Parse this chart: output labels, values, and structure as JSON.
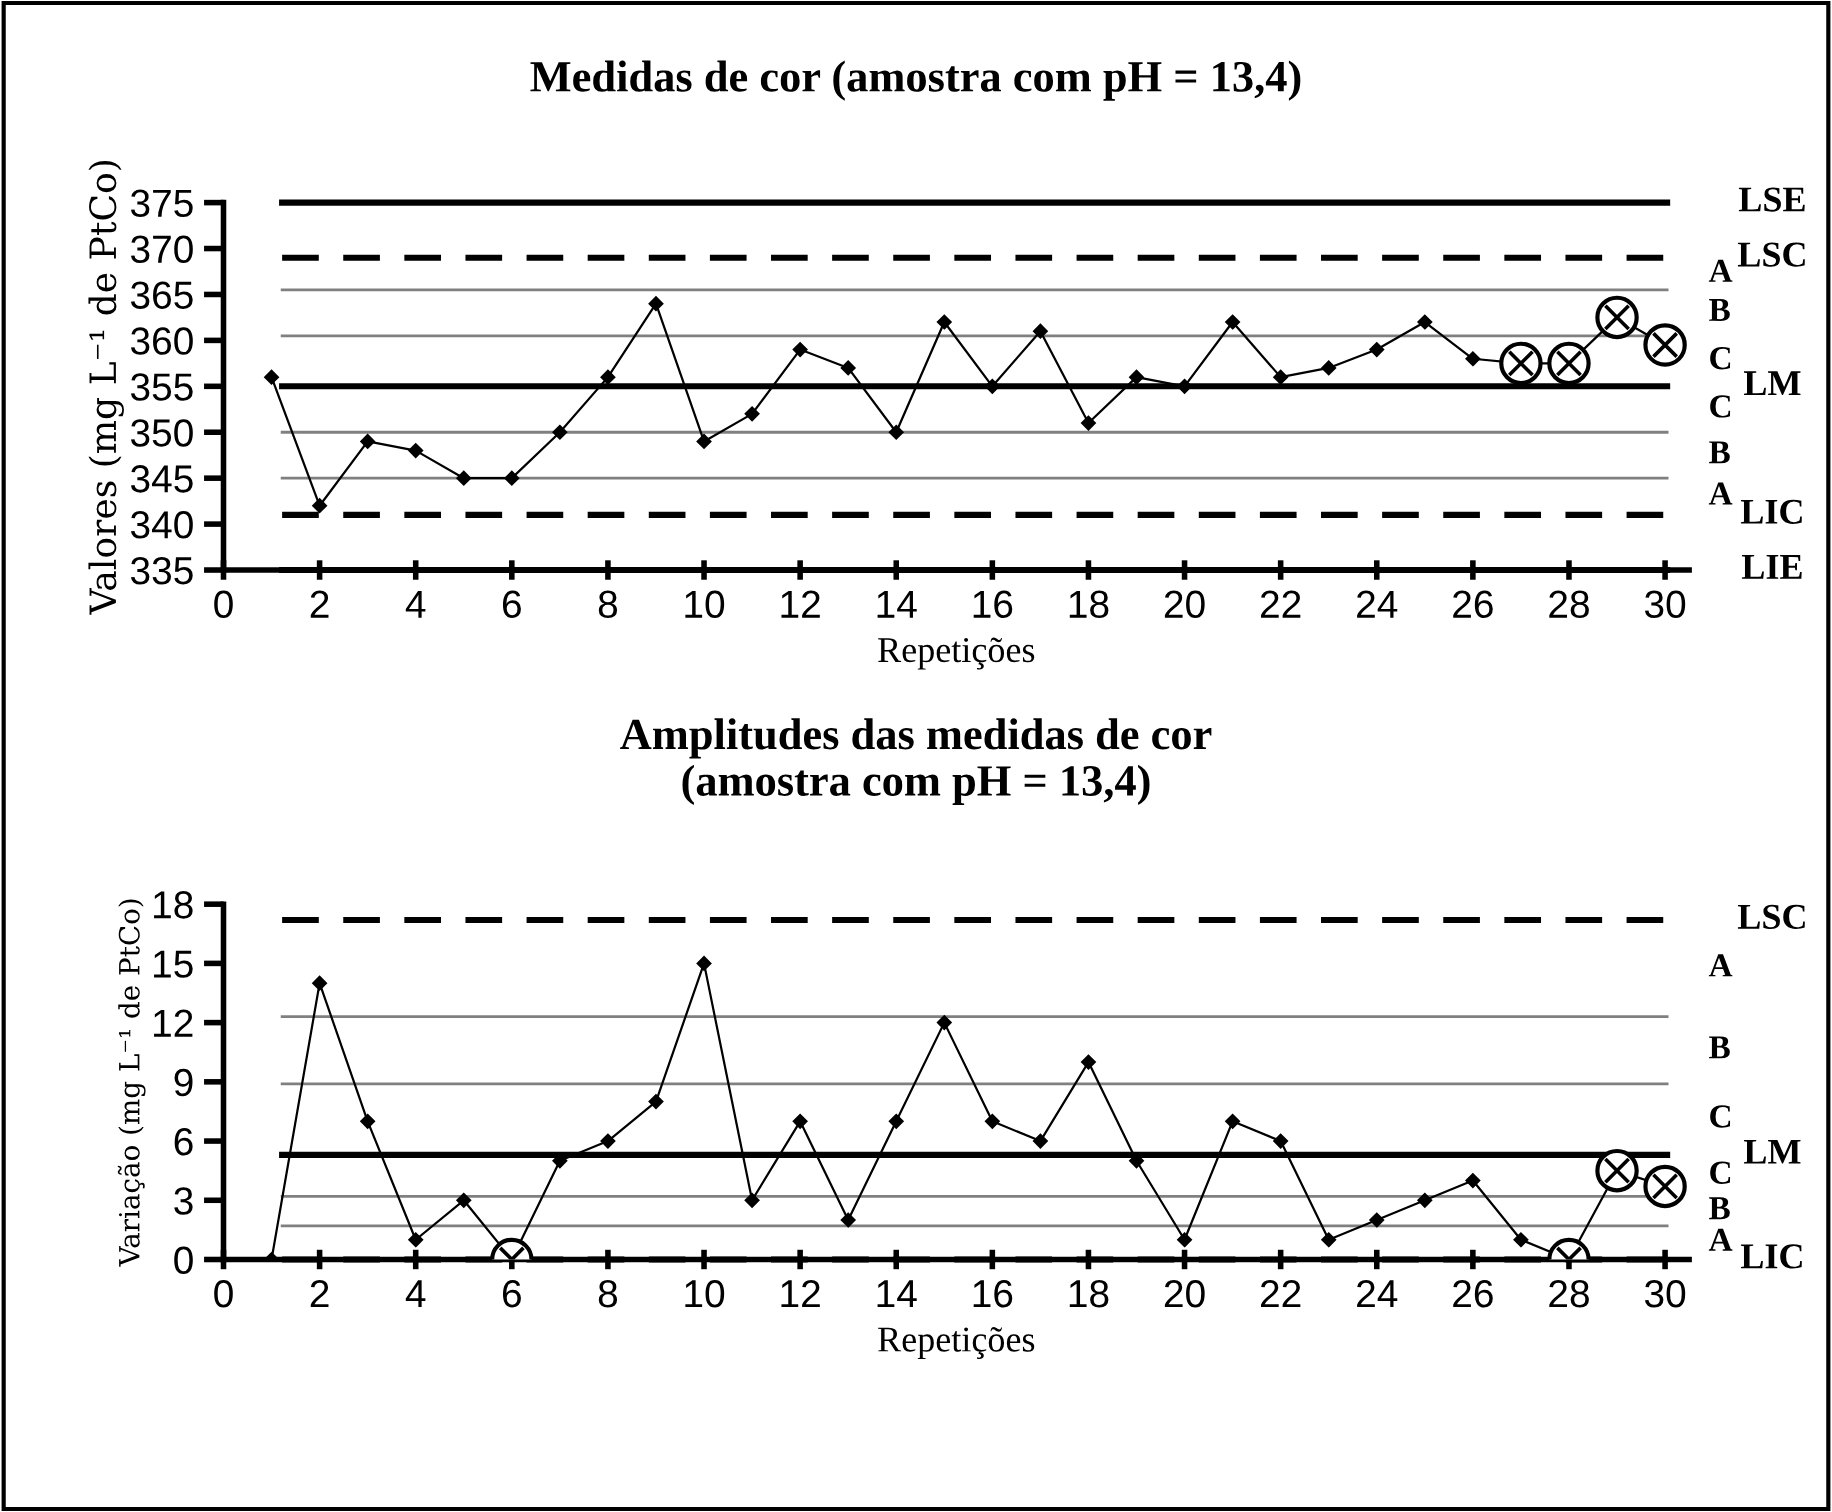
{
  "chart_data": [
    {
      "type": "line",
      "title": "Medidas de cor (amostra com pH = 13,4)",
      "xlabel": "Repetições",
      "ylabel": "Valores (mg L⁻¹ de PtCo)",
      "x": [
        1,
        2,
        3,
        4,
        5,
        6,
        7,
        8,
        9,
        10,
        11,
        12,
        13,
        14,
        15,
        16,
        17,
        18,
        19,
        20,
        21,
        22,
        23,
        24,
        25,
        26,
        27,
        28,
        29,
        30
      ],
      "series": [
        {
          "color": "#000000",
          "marker": "diamond",
          "values": [
            356,
            342,
            349,
            348,
            345,
            345,
            350,
            356,
            364,
            349,
            352,
            359,
            357,
            350,
            362,
            355,
            361,
            351,
            356,
            355,
            362,
            356,
            357,
            359,
            362,
            358,
            357.5,
            357.5,
            362.5,
            359.5
          ]
        },
        {
          "type": "scatter",
          "color": "#000000",
          "marker": "circled_cross",
          "x": [
            27,
            28,
            29,
            30
          ],
          "values": [
            357.5,
            357.5,
            362.5,
            359.5
          ]
        }
      ],
      "xlim": [
        0,
        30.5
      ],
      "xticks": [
        0,
        2,
        4,
        6,
        8,
        10,
        12,
        14,
        16,
        18,
        20,
        22,
        24,
        26,
        28,
        30
      ],
      "ylim": [
        335,
        375
      ],
      "yticks": [
        335,
        340,
        345,
        350,
        355,
        360,
        365,
        370,
        375
      ],
      "grid": false,
      "legend": false,
      "ref_lines": [
        {
          "axis": "y",
          "value": 375,
          "label": "LSE",
          "color": "#000000",
          "line_style": "solid"
        },
        {
          "axis": "y",
          "value": 369,
          "label": "LSC",
          "color": "#000000",
          "line_style": "dashed"
        },
        {
          "axis": "y",
          "value": 365.5,
          "color": "#808080",
          "line_style": "solid"
        },
        {
          "axis": "y",
          "value": 360.5,
          "color": "#808080",
          "line_style": "solid"
        },
        {
          "axis": "y",
          "value": 355,
          "label": "LM",
          "color": "#000000",
          "line_style": "solid"
        },
        {
          "axis": "y",
          "value": 350,
          "color": "#808080",
          "line_style": "solid"
        },
        {
          "axis": "y",
          "value": 345,
          "color": "#808080",
          "line_style": "solid"
        },
        {
          "axis": "y",
          "value": 341,
          "label": "LIC",
          "color": "#000000",
          "line_style": "dashed"
        },
        {
          "axis": "y",
          "value": 335,
          "label": "LIE",
          "color": "#000000",
          "line_style": "solid"
        }
      ],
      "annotations": [
        "A",
        "B",
        "C",
        "C",
        "B",
        "A"
      ]
    },
    {
      "type": "line",
      "title": "Amplitudes das medidas de cor\n(amostra com pH = 13,4)",
      "xlabel": "Repetições",
      "ylabel": "Variação (mg L⁻¹ de PtCo)",
      "x": [
        1,
        2,
        3,
        4,
        5,
        6,
        7,
        8,
        9,
        10,
        11,
        12,
        13,
        14,
        15,
        16,
        17,
        18,
        19,
        20,
        21,
        22,
        23,
        24,
        25,
        26,
        27,
        28,
        29,
        30
      ],
      "series": [
        {
          "color": "#000000",
          "marker": "diamond",
          "values": [
            0,
            14,
            7,
            1,
            3,
            0,
            5,
            6,
            8,
            15,
            3,
            7,
            2,
            7,
            12,
            7,
            6,
            10,
            5,
            1,
            7,
            6,
            1,
            2,
            3,
            4,
            1,
            0,
            4.5,
            3.7
          ]
        },
        {
          "type": "scatter",
          "color": "#000000",
          "marker": "circled_cross",
          "x": [
            6,
            28,
            29,
            30
          ],
          "values": [
            0,
            0,
            4.5,
            3.7
          ]
        }
      ],
      "xlim": [
        0,
        30.5
      ],
      "xticks": [
        0,
        2,
        4,
        6,
        8,
        10,
        12,
        14,
        16,
        18,
        20,
        22,
        24,
        26,
        28,
        30
      ],
      "ylim": [
        0,
        18
      ],
      "yticks": [
        0,
        3,
        6,
        9,
        12,
        15,
        18
      ],
      "grid": false,
      "legend": false,
      "ref_lines": [
        {
          "axis": "y",
          "value": 17.2,
          "label": "LSC",
          "color": "#000000",
          "line_style": "dashed"
        },
        {
          "axis": "y",
          "value": 12.3,
          "color": "#808080",
          "line_style": "solid"
        },
        {
          "axis": "y",
          "value": 8.9,
          "color": "#808080",
          "line_style": "solid"
        },
        {
          "axis": "y",
          "value": 5.3,
          "label": "LM",
          "color": "#000000",
          "line_style": "solid"
        },
        {
          "axis": "y",
          "value": 3.2,
          "color": "#808080",
          "line_style": "solid"
        },
        {
          "axis": "y",
          "value": 1.7,
          "color": "#808080",
          "line_style": "solid"
        },
        {
          "axis": "y",
          "value": 0,
          "label": "LIC",
          "color": "#000000",
          "line_style": "dashed"
        }
      ],
      "annotations": [
        "A",
        "B",
        "C",
        "C",
        "B",
        "A"
      ]
    }
  ]
}
